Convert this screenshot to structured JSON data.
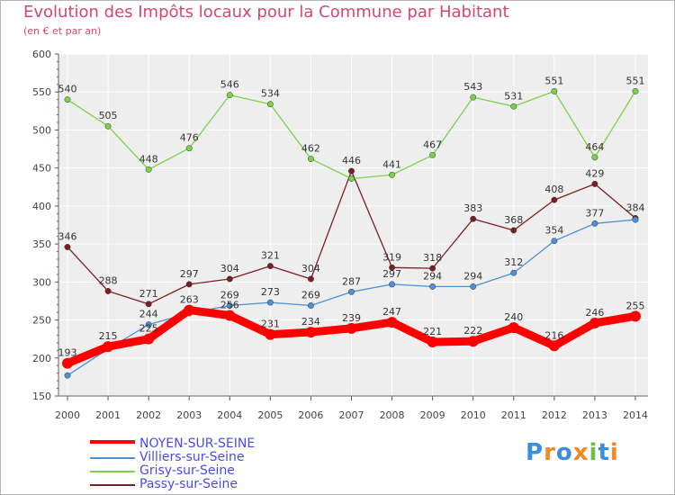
{
  "header": {
    "title": "Evolution des Impôts locaux pour la Commune par Habitant",
    "subtitle": "(en € et par an)"
  },
  "chart_data": {
    "type": "line",
    "title": "Evolution des Impôts locaux pour la Commune par Habitant",
    "ylabel": "(en € et par an)",
    "ylim": [
      150,
      600
    ],
    "yticks": [
      "150",
      "200",
      "250",
      "300",
      "350",
      "400",
      "450",
      "500",
      "550",
      "600"
    ],
    "x": [
      "2000",
      "2001",
      "2002",
      "2003",
      "2004",
      "2005",
      "2006",
      "2007",
      "2008",
      "2009",
      "2010",
      "2011",
      "2012",
      "2013",
      "2014"
    ],
    "series": [
      {
        "name": "NOYEN-SUR-SEINE",
        "color": "#ff0000",
        "values": [
          193,
          215,
          225,
          263,
          256,
          231,
          234,
          239,
          247,
          221,
          222,
          240,
          216,
          246,
          255
        ],
        "labels": [
          "193",
          "215",
          "225",
          "263",
          "256",
          "231",
          "234",
          "239",
          "247",
          "221",
          "222",
          "240",
          "216",
          "246",
          "255"
        ]
      },
      {
        "name": "Villiers-sur-Seine",
        "color": "#4f8fd4",
        "values": [
          177,
          212,
          244,
          259,
          269,
          273,
          269,
          287,
          297,
          294,
          294,
          312,
          354,
          377,
          382
        ],
        "labels": [
          "",
          "",
          "244",
          "",
          "269",
          "273",
          "269",
          "287",
          "297",
          "294",
          "294",
          "312",
          "354",
          "377",
          ""
        ]
      },
      {
        "name": "Grisy-sur-Seine",
        "color": "#7dd14a",
        "values": [
          540,
          505,
          448,
          476,
          546,
          534,
          462,
          436,
          441,
          467,
          543,
          531,
          551,
          464,
          551
        ],
        "labels": [
          "540",
          "505",
          "448",
          "476",
          "546",
          "534",
          "462",
          "",
          "441",
          "467",
          "543",
          "531",
          "551",
          "464",
          "551"
        ]
      },
      {
        "name": "Passy-sur-Seine",
        "color": "#7a1f24",
        "values": [
          346,
          288,
          271,
          297,
          304,
          321,
          304,
          446,
          319,
          318,
          383,
          368,
          408,
          429,
          384
        ],
        "labels": [
          "346",
          "288",
          "271",
          "297",
          "304",
          "321",
          "304",
          "446",
          "319",
          "318",
          "383",
          "368",
          "408",
          "429",
          "384"
        ]
      }
    ]
  },
  "brand": {
    "letters": [
      "P",
      "r",
      "o",
      "x",
      "i",
      "t",
      "i"
    ],
    "colors": [
      "#3a8fd8",
      "#f08a24",
      "#3a8fd8",
      "#f08a24",
      "#6cc04a",
      "#3a8fd8",
      "#f08a24"
    ]
  }
}
